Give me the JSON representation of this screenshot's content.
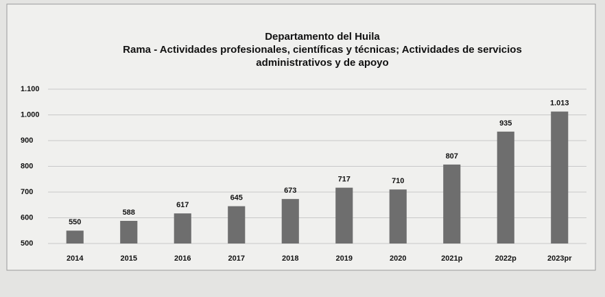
{
  "chart_data": {
    "type": "bar",
    "title": "Departamento del Huila",
    "subtitle": "Rama - Actividades profesionales, científicas y técnicas; Actividades de servicios administrativos y de apoyo",
    "categories": [
      "2014",
      "2015",
      "2016",
      "2017",
      "2018",
      "2019",
      "2020",
      "2021p",
      "2022p",
      "2023pr"
    ],
    "values": [
      550,
      588,
      617,
      645,
      673,
      717,
      710,
      807,
      935,
      1013
    ],
    "value_labels": [
      "550",
      "588",
      "617",
      "645",
      "673",
      "717",
      "710",
      "807",
      "935",
      "1.013"
    ],
    "color": "#6e6e6e",
    "ylim": [
      500,
      1100
    ],
    "yticks": [
      500,
      600,
      700,
      800,
      900,
      {
        "value": 1000,
        "label": "1.000"
      },
      {
        "value": 1100,
        "label": "1.100"
      }
    ],
    "grid": true
  }
}
